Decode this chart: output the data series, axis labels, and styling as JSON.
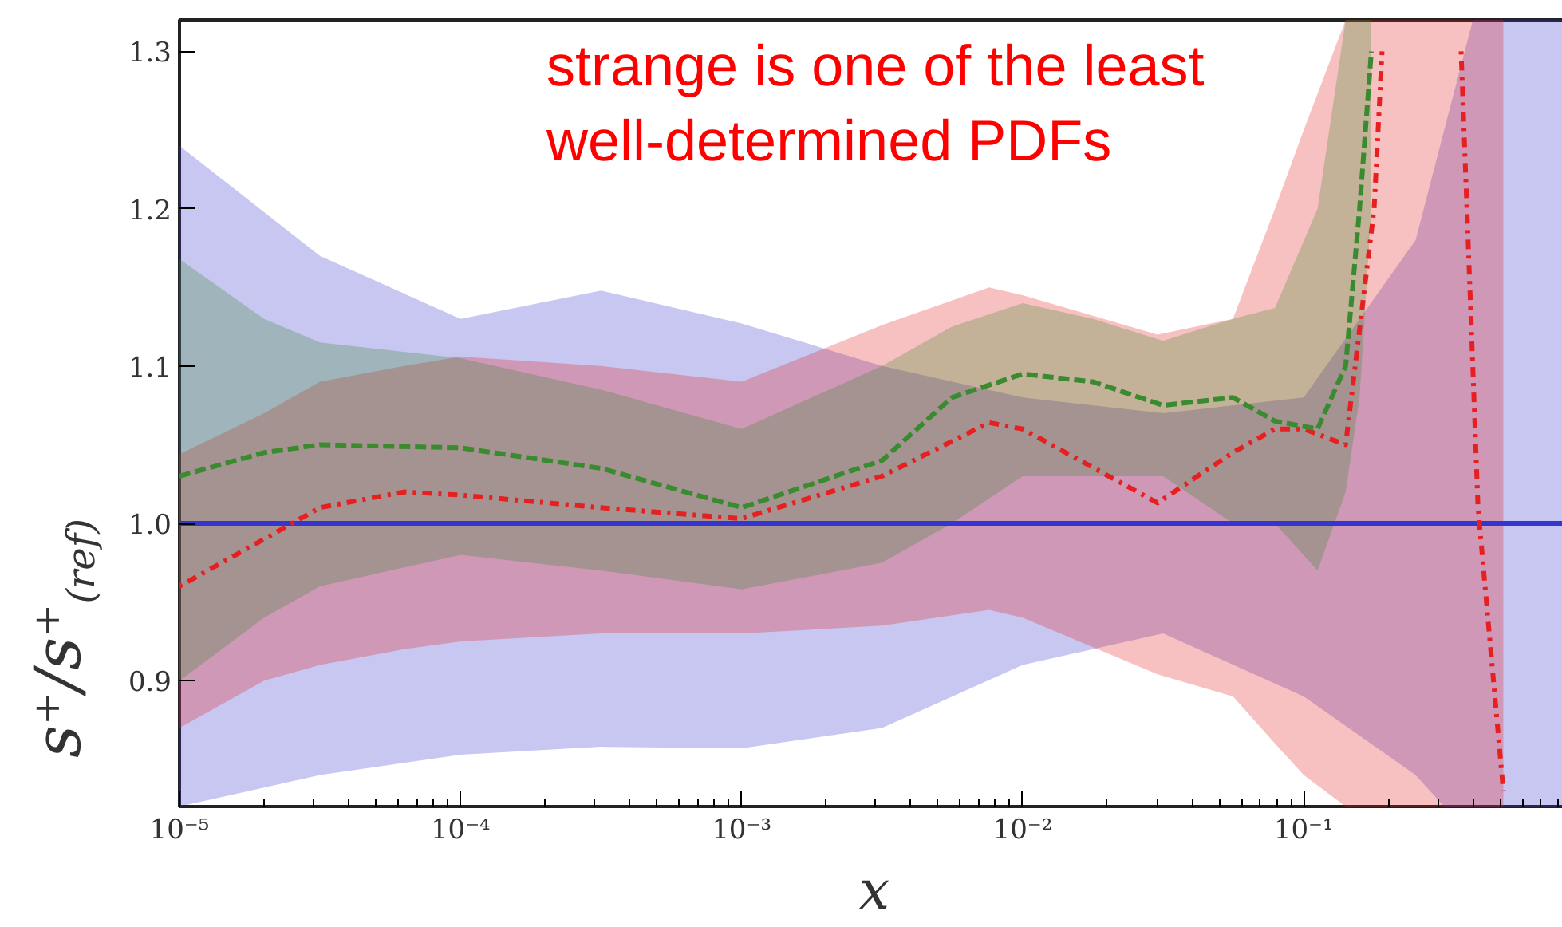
{
  "chart_data": {
    "type": "line",
    "xlabel": "x",
    "ylabel": "s⁺/s⁺$_{(ref)}$",
    "log": "x",
    "grid": false,
    "xlim": [
      1e-05,
      0.88
    ],
    "ylim": [
      0.82,
      1.32
    ],
    "xticks": [
      {
        "value": 1e-05,
        "label": "10⁻⁵"
      },
      {
        "value": 0.0001,
        "label": "10⁻⁴"
      },
      {
        "value": 0.001,
        "label": "10⁻³"
      },
      {
        "value": 0.01,
        "label": "10⁻²"
      },
      {
        "value": 0.1,
        "label": "10⁻¹"
      }
    ],
    "yticks": [
      0.9,
      {
        "value": 1,
        "label": "1.0"
      },
      1.1,
      1.2,
      1.3
    ],
    "annotations": [
      "strange is one of the least\nwell-determined PDFs"
    ],
    "series": [
      {
        "color": "#3535d0",
        "line_style": "solid",
        "x": [
          1e-05,
          3.16e-05,
          0.0001,
          0.000316,
          0.001,
          0.00316,
          0.01,
          0.0316,
          0.1,
          0.25,
          0.316,
          0.4,
          0.88
        ],
        "values": [
          1,
          1,
          1,
          1,
          1,
          1,
          1,
          1,
          1,
          1,
          1,
          1,
          1
        ],
        "lower": [
          0.82,
          0.84,
          0.853,
          0.858,
          0.857,
          0.87,
          0.91,
          0.93,
          0.89,
          0.84,
          0.82,
          0.82,
          0.82
        ],
        "upper": [
          1.24,
          1.17,
          1.13,
          1.148,
          1.127,
          1.1,
          1.08,
          1.07,
          1.08,
          1.18,
          1.25,
          1.32,
          1.32
        ]
      },
      {
        "color": "#e62020",
        "line_style": "dotted",
        "x": [
          1e-05,
          2e-05,
          3.16e-05,
          6.3e-05,
          0.0001,
          0.000316,
          0.001,
          0.00316,
          0.0076,
          0.01,
          0.0302,
          0.056,
          0.079,
          0.1,
          0.141,
          0.178,
          0.19,
          0.2,
          0.363,
          0.417,
          0.513
        ],
        "values": [
          0.96,
          0.99,
          1.01,
          1.02,
          1.018,
          1.01,
          1.003,
          1.03,
          1.064,
          1.06,
          1.013,
          1.045,
          1.06,
          1.06,
          1.05,
          1.2,
          1.3,
          null,
          1.3,
          1.01,
          0.83
        ],
        "lower": [
          0.87,
          0.9,
          0.91,
          0.92,
          0.925,
          0.93,
          0.93,
          0.935,
          0.945,
          0.94,
          0.904,
          0.89,
          0.86,
          0.84,
          0.82,
          0.82,
          0.82,
          0.82,
          0.82,
          0.82,
          0.82
        ],
        "upper": [
          1.044,
          1.07,
          1.09,
          1.1,
          1.106,
          1.1,
          1.09,
          1.126,
          1.15,
          1.145,
          1.12,
          1.13,
          1.2,
          1.25,
          1.32,
          1.32,
          1.32,
          1.32,
          1.32,
          1.32,
          1.32
        ]
      },
      {
        "color": "#3a8a30",
        "line_style": "dashed",
        "x": [
          1e-05,
          2e-05,
          3.16e-05,
          0.0001,
          0.000316,
          0.001,
          0.00316,
          0.0056,
          0.01,
          0.0178,
          0.0316,
          0.056,
          0.079,
          0.112,
          0.141,
          0.158,
          0.174
        ],
        "values": [
          1.03,
          1.045,
          1.05,
          1.048,
          1.035,
          1.01,
          1.04,
          1.08,
          1.095,
          1.09,
          1.075,
          1.08,
          1.065,
          1.06,
          1.1,
          1.2,
          1.3
        ],
        "lower": [
          0.9,
          0.94,
          0.96,
          0.98,
          0.97,
          0.958,
          0.975,
          1.0,
          1.03,
          1.03,
          1.03,
          1.0,
          1.0,
          0.97,
          1.02,
          1.08,
          1.2
        ],
        "upper": [
          1.168,
          1.13,
          1.115,
          1.105,
          1.085,
          1.06,
          1.1,
          1.125,
          1.14,
          1.13,
          1.116,
          1.13,
          1.137,
          1.2,
          1.32,
          1.32,
          1.32
        ]
      }
    ]
  }
}
